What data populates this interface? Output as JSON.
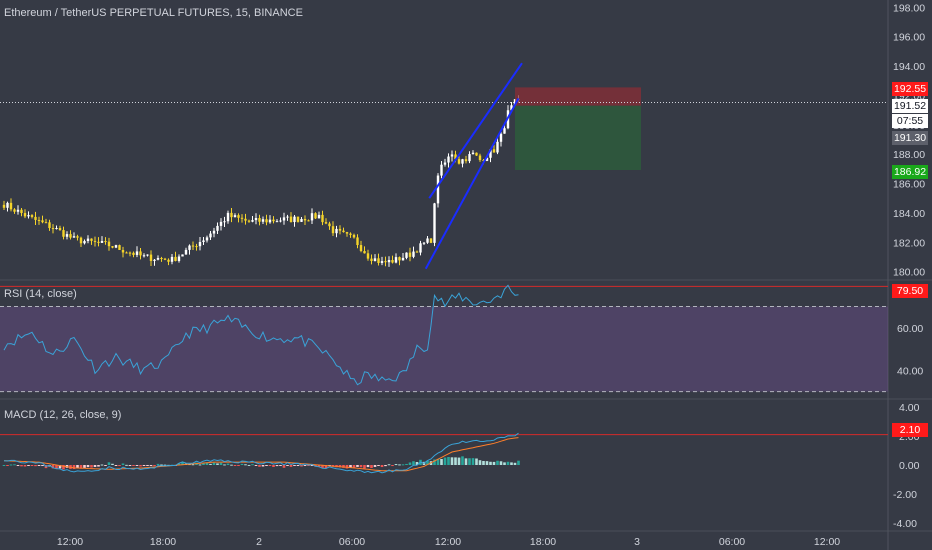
{
  "header": {
    "title": "Ethereum / TetherUS PERPETUAL FUTURES, 15, BINANCE",
    "rsi_label": "RSI (14, close)",
    "macd_label": "MACD (12, 26, close, 9)"
  },
  "markers": {
    "target_price": "192.55",
    "last_price": "191.52",
    "countdown": "07:55",
    "entry_price": "191.30",
    "stop_price": "186.92",
    "rsi_value": "79.50",
    "macd_value": "2.10"
  },
  "colors": {
    "background": "#363a45",
    "up": "#ffffff",
    "down": "#f5d42a",
    "channel": "#1a2cff",
    "rsi_line": "#3aa3d8",
    "rsi_band": "#6d4f8c",
    "macd_line": "#3aa3d8",
    "signal_line": "#ff7f2a",
    "hist_up": "#26a69a",
    "hist_down": "#ef5350",
    "target_red": "#ff2a2a",
    "stop_green": "#1aa81a"
  },
  "chart_data": [
    {
      "type": "candlestick",
      "title": "Ethereum / TetherUS PERPETUAL FUTURES, 15, BINANCE",
      "ylim": [
        179.5,
        198.5
      ],
      "yticks": [
        "198.00",
        "196.00",
        "194.00",
        "192.00",
        "190.00",
        "188.00",
        "186.00",
        "184.00",
        "182.00",
        "180.00"
      ],
      "xticks": [
        "12:00",
        "18:00",
        "2",
        "06:00",
        "12:00",
        "18:00",
        "3",
        "06:00",
        "12:00"
      ],
      "close_anchors": [
        [
          0,
          184.6
        ],
        [
          8,
          183.6
        ],
        [
          14,
          183.0
        ],
        [
          20,
          182.2
        ],
        [
          30,
          181.8
        ],
        [
          40,
          181.0
        ],
        [
          48,
          180.8
        ],
        [
          52,
          181.4
        ],
        [
          58,
          182.4
        ],
        [
          64,
          183.8
        ],
        [
          70,
          183.4
        ],
        [
          76,
          183.5
        ],
        [
          84,
          183.6
        ],
        [
          90,
          183.8
        ],
        [
          94,
          182.8
        ],
        [
          100,
          182.2
        ],
        [
          104,
          181.1
        ],
        [
          108,
          180.6
        ],
        [
          112,
          180.8
        ],
        [
          116,
          181.2
        ],
        [
          120,
          181.9
        ],
        [
          122,
          182.2
        ],
        [
          124,
          186.7
        ],
        [
          126,
          187.4
        ],
        [
          128,
          188.1
        ],
        [
          130,
          187.5
        ],
        [
          134,
          188.0
        ],
        [
          136,
          187.6
        ],
        [
          140,
          188.3
        ],
        [
          142,
          189.2
        ],
        [
          144,
          190.8
        ],
        [
          146,
          191.5
        ],
        [
          147,
          191.52
        ]
      ],
      "candle_count": 148,
      "trend_channel": {
        "upper": [
          [
            121.5,
            185.0
          ],
          [
            148,
            194.2
          ]
        ],
        "lower": [
          [
            120.5,
            180.2
          ],
          [
            147,
            191.8
          ]
        ]
      },
      "position": {
        "target": 192.55,
        "entry": 191.3,
        "stop": 186.92,
        "start_index": 146,
        "end_index": 182
      }
    },
    {
      "type": "line",
      "title": "RSI (14, close)",
      "ylim": [
        27,
        82
      ],
      "bands": [
        30,
        70
      ],
      "overbought_line": 79.5,
      "yticks": [
        "60.00",
        "40.00"
      ],
      "anchors": [
        [
          0,
          52
        ],
        [
          8,
          58
        ],
        [
          14,
          47
        ],
        [
          20,
          55
        ],
        [
          26,
          41
        ],
        [
          32,
          46
        ],
        [
          40,
          40
        ],
        [
          46,
          44
        ],
        [
          52,
          57
        ],
        [
          58,
          60
        ],
        [
          64,
          64
        ],
        [
          70,
          59
        ],
        [
          76,
          55
        ],
        [
          84,
          55
        ],
        [
          90,
          50
        ],
        [
          94,
          45
        ],
        [
          100,
          34
        ],
        [
          104,
          38
        ],
        [
          108,
          35
        ],
        [
          114,
          38
        ],
        [
          118,
          50
        ],
        [
          121,
          52
        ],
        [
          123,
          75
        ],
        [
          126,
          71
        ],
        [
          130,
          75
        ],
        [
          134,
          72
        ],
        [
          138,
          72
        ],
        [
          142,
          76
        ],
        [
          144,
          79
        ],
        [
          146,
          75
        ],
        [
          147,
          77
        ]
      ]
    },
    {
      "type": "line",
      "title": "MACD (12, 26, close, 9)",
      "ylim": [
        -4.5,
        4.5
      ],
      "yticks": [
        "4.00",
        "2.00",
        "0.00",
        "-2.00",
        "-4.00"
      ],
      "level_line": 2.1,
      "macd_anchors": [
        [
          0,
          0.4
        ],
        [
          10,
          0.1
        ],
        [
          20,
          -0.5
        ],
        [
          30,
          -0.2
        ],
        [
          40,
          -0.3
        ],
        [
          50,
          0.1
        ],
        [
          60,
          0.3
        ],
        [
          70,
          0.2
        ],
        [
          80,
          0.1
        ],
        [
          90,
          -0.1
        ],
        [
          100,
          -0.4
        ],
        [
          108,
          -0.5
        ],
        [
          115,
          -0.3
        ],
        [
          120,
          0.2
        ],
        [
          124,
          0.8
        ],
        [
          128,
          1.5
        ],
        [
          134,
          1.6
        ],
        [
          140,
          1.7
        ],
        [
          144,
          2.0
        ],
        [
          147,
          2.1
        ]
      ],
      "signal_anchors": [
        [
          0,
          0.3
        ],
        [
          10,
          0.2
        ],
        [
          20,
          -0.2
        ],
        [
          30,
          -0.3
        ],
        [
          40,
          -0.2
        ],
        [
          50,
          0.0
        ],
        [
          60,
          0.2
        ],
        [
          70,
          0.2
        ],
        [
          80,
          0.2
        ],
        [
          90,
          0.0
        ],
        [
          100,
          -0.2
        ],
        [
          108,
          -0.4
        ],
        [
          115,
          -0.4
        ],
        [
          120,
          -0.1
        ],
        [
          124,
          0.4
        ],
        [
          128,
          0.9
        ],
        [
          134,
          1.2
        ],
        [
          140,
          1.5
        ],
        [
          144,
          1.8
        ],
        [
          147,
          1.9
        ]
      ]
    }
  ]
}
